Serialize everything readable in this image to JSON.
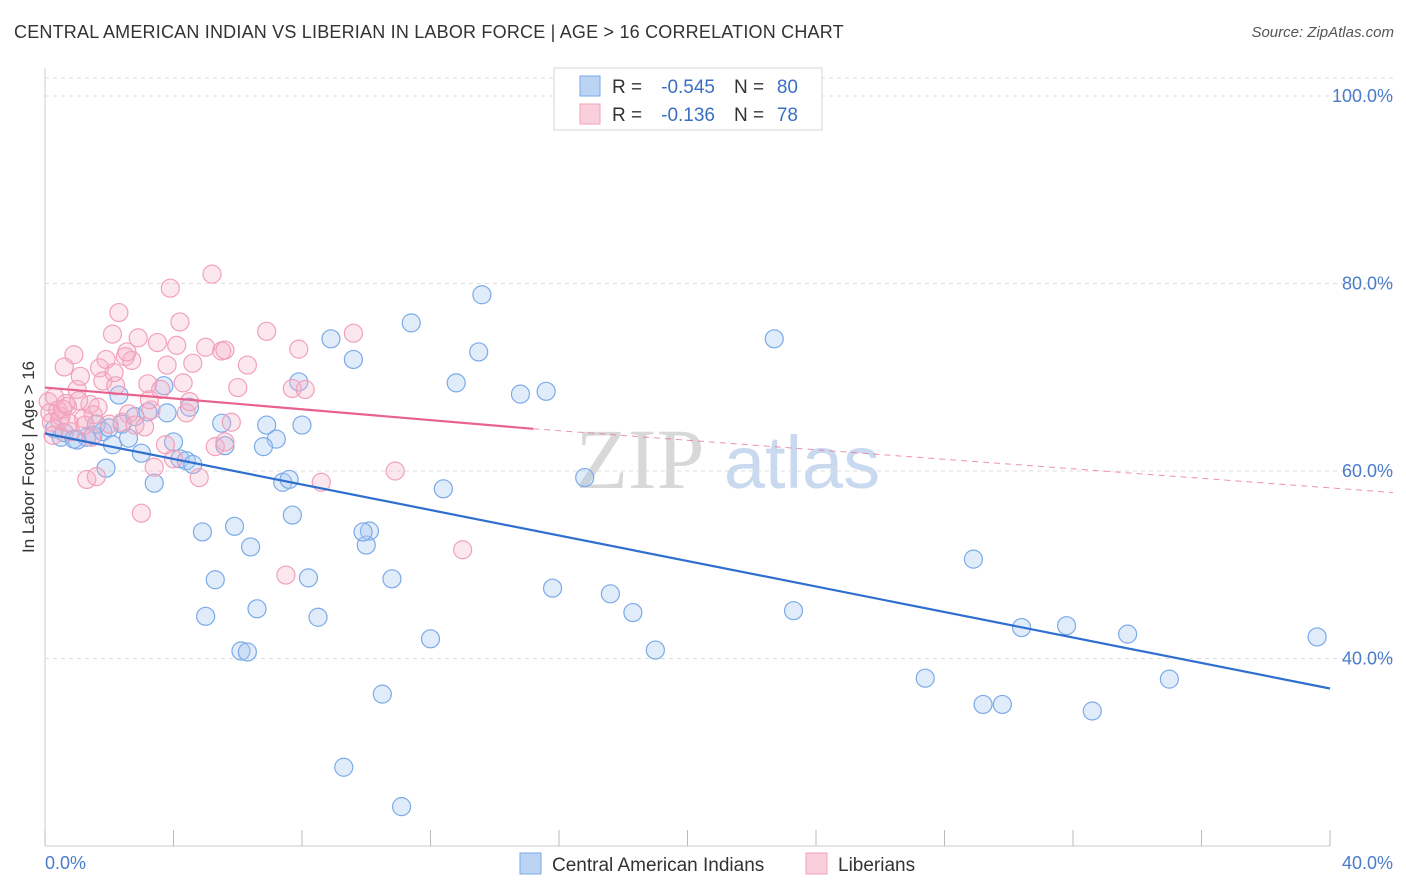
{
  "chart_data": {
    "type": "scatter",
    "title": "CENTRAL AMERICAN INDIAN VS LIBERIAN IN LABOR FORCE | AGE > 16 CORRELATION CHART",
    "source": "Source: ZipAtlas.com",
    "ylabel": "In Labor Force | Age > 16",
    "xlim": [
      0,
      40
    ],
    "ylim": [
      20,
      100
    ],
    "x_tick_labels": [
      "0.0%",
      "40.0%"
    ],
    "y_ticks": [
      40,
      60,
      80,
      100
    ],
    "y_tick_labels": [
      "40.0%",
      "60.0%",
      "80.0%",
      "100.0%"
    ],
    "watermark": {
      "zip": "ZIP",
      "atlas": "atlas"
    },
    "legend": {
      "r_label": "R =",
      "n_label": "N =",
      "entries": [
        {
          "name": "Central American Indians",
          "r": "-0.545",
          "n": "80",
          "color": "#7aaae8"
        },
        {
          "name": "Liberians",
          "r": "-0.136",
          "n": "78",
          "color": "#f2a0ba"
        }
      ]
    },
    "series": [
      {
        "name": "Central American Indians",
        "color": "#7aaae8",
        "line_color": "#2f6fce",
        "trend": {
          "x0": 0,
          "y0": 64.0,
          "x1": 40,
          "y1": 36.8
        },
        "points": [
          [
            0.3,
            64.5
          ],
          [
            0.5,
            63.6
          ],
          [
            0.6,
            64.1
          ],
          [
            1.0,
            63.3
          ],
          [
            1.3,
            63.6
          ],
          [
            1.5,
            63.8
          ],
          [
            1.8,
            64.2
          ],
          [
            1.9,
            60.3
          ],
          [
            2.1,
            62.8
          ],
          [
            2.3,
            68.1
          ],
          [
            2.4,
            65.0
          ],
          [
            2.8,
            65.8
          ],
          [
            3.2,
            66.3
          ],
          [
            3.4,
            58.7
          ],
          [
            3.7,
            69.1
          ],
          [
            3.8,
            66.2
          ],
          [
            4.2,
            61.3
          ],
          [
            4.4,
            61.1
          ],
          [
            4.5,
            66.8
          ],
          [
            4.6,
            60.7
          ],
          [
            4.9,
            53.5
          ],
          [
            5.3,
            48.4
          ],
          [
            5.6,
            62.7
          ],
          [
            5.9,
            54.1
          ],
          [
            6.1,
            40.8
          ],
          [
            6.4,
            51.9
          ],
          [
            6.6,
            45.3
          ],
          [
            6.9,
            64.9
          ],
          [
            7.2,
            63.4
          ],
          [
            7.4,
            58.8
          ],
          [
            7.6,
            59.1
          ],
          [
            7.7,
            55.3
          ],
          [
            7.9,
            69.5
          ],
          [
            8.0,
            64.9
          ],
          [
            8.2,
            48.6
          ],
          [
            8.5,
            44.4
          ],
          [
            8.9,
            74.1
          ],
          [
            9.3,
            28.4
          ],
          [
            9.6,
            71.9
          ],
          [
            10.0,
            52.1
          ],
          [
            10.1,
            53.6
          ],
          [
            10.5,
            36.2
          ],
          [
            10.8,
            48.5
          ],
          [
            11.1,
            24.2
          ],
          [
            11.4,
            75.8
          ],
          [
            12.4,
            58.1
          ],
          [
            12.8,
            69.4
          ],
          [
            13.5,
            72.7
          ],
          [
            13.6,
            78.8
          ],
          [
            14.8,
            68.2
          ],
          [
            15.6,
            68.5
          ],
          [
            15.8,
            47.5
          ],
          [
            16.8,
            59.3
          ],
          [
            17.6,
            46.9
          ],
          [
            18.3,
            44.9
          ],
          [
            19.0,
            40.9
          ],
          [
            22.7,
            74.1
          ],
          [
            23.3,
            45.1
          ],
          [
            27.4,
            37.9
          ],
          [
            28.9,
            50.6
          ],
          [
            29.2,
            35.1
          ],
          [
            29.8,
            35.1
          ],
          [
            30.4,
            43.3
          ],
          [
            31.8,
            43.5
          ],
          [
            32.6,
            34.4
          ],
          [
            33.7,
            42.6
          ],
          [
            35.0,
            37.8
          ],
          [
            39.6,
            42.3
          ],
          [
            2.6,
            63.5
          ],
          [
            3.0,
            61.9
          ],
          [
            5.0,
            44.5
          ],
          [
            6.8,
            62.6
          ],
          [
            1.6,
            65.0
          ],
          [
            0.9,
            63.4
          ],
          [
            4.0,
            63.1
          ],
          [
            2.0,
            64.6
          ],
          [
            5.5,
            65.1
          ],
          [
            6.3,
            40.7
          ],
          [
            9.9,
            53.5
          ],
          [
            12.0,
            42.1
          ]
        ]
      },
      {
        "name": "Liberians",
        "color": "#f2a0ba",
        "line_color": "#e8628f",
        "trend": {
          "x0": 0,
          "y0": 68.9,
          "x1": 15.2,
          "y1": 64.5
        },
        "trend_dashed": {
          "x0": 15.2,
          "y0": 64.5,
          "x1": 40,
          "y1": 57.3
        },
        "points": [
          [
            0.1,
            67.4
          ],
          [
            0.15,
            66.2
          ],
          [
            0.2,
            65.2
          ],
          [
            0.3,
            67.9
          ],
          [
            0.4,
            66.5
          ],
          [
            0.5,
            65.8
          ],
          [
            0.6,
            71.1
          ],
          [
            0.7,
            66.9
          ],
          [
            0.8,
            64.2
          ],
          [
            0.9,
            72.4
          ],
          [
            1.0,
            68.7
          ],
          [
            1.1,
            70.1
          ],
          [
            1.2,
            65.6
          ],
          [
            1.3,
            59.1
          ],
          [
            1.4,
            67.1
          ],
          [
            1.5,
            66.0
          ],
          [
            1.6,
            59.4
          ],
          [
            1.7,
            71.0
          ],
          [
            1.8,
            69.6
          ],
          [
            1.9,
            71.9
          ],
          [
            2.0,
            65.0
          ],
          [
            2.1,
            74.6
          ],
          [
            2.2,
            69.1
          ],
          [
            2.3,
            76.9
          ],
          [
            2.4,
            65.2
          ],
          [
            2.5,
            72.2
          ],
          [
            2.6,
            66.1
          ],
          [
            2.7,
            71.8
          ],
          [
            2.8,
            64.9
          ],
          [
            2.9,
            74.2
          ],
          [
            3.0,
            55.5
          ],
          [
            3.1,
            64.7
          ],
          [
            3.2,
            69.3
          ],
          [
            3.3,
            66.5
          ],
          [
            3.4,
            60.4
          ],
          [
            3.5,
            73.7
          ],
          [
            3.6,
            68.7
          ],
          [
            3.8,
            71.3
          ],
          [
            3.9,
            79.5
          ],
          [
            4.0,
            61.3
          ],
          [
            4.1,
            73.4
          ],
          [
            4.2,
            75.9
          ],
          [
            4.3,
            69.4
          ],
          [
            4.4,
            66.2
          ],
          [
            4.6,
            71.5
          ],
          [
            4.8,
            59.3
          ],
          [
            5.0,
            73.2
          ],
          [
            5.2,
            81.0
          ],
          [
            5.3,
            62.6
          ],
          [
            5.5,
            72.8
          ],
          [
            5.6,
            72.9
          ],
          [
            5.8,
            65.2
          ],
          [
            6.0,
            68.9
          ],
          [
            6.3,
            71.3
          ],
          [
            6.9,
            74.9
          ],
          [
            7.5,
            48.9
          ],
          [
            7.7,
            68.8
          ],
          [
            7.9,
            73.0
          ],
          [
            8.1,
            68.7
          ],
          [
            8.6,
            58.8
          ],
          [
            9.6,
            74.7
          ],
          [
            10.9,
            60.0
          ],
          [
            13.0,
            51.6
          ],
          [
            0.25,
            63.8
          ],
          [
            0.45,
            65.4
          ],
          [
            0.55,
            66.6
          ],
          [
            0.65,
            67.2
          ],
          [
            0.75,
            65.1
          ],
          [
            1.05,
            67.5
          ],
          [
            1.25,
            64.9
          ],
          [
            1.45,
            63.6
          ],
          [
            1.65,
            66.8
          ],
          [
            2.15,
            70.5
          ],
          [
            2.55,
            72.7
          ],
          [
            3.25,
            67.6
          ],
          [
            3.75,
            62.8
          ],
          [
            4.5,
            67.4
          ],
          [
            5.6,
            63.1
          ]
        ]
      }
    ]
  }
}
